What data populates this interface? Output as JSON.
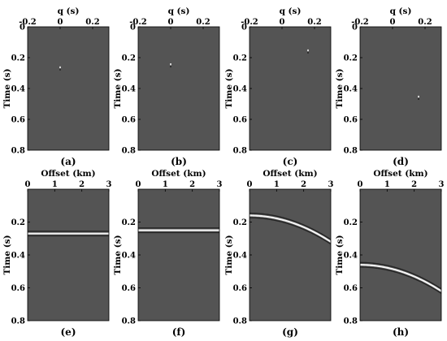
{
  "chart_data": [
    {
      "type": "heatmap",
      "caption": "(a)",
      "xlabel": "q (s)",
      "ylabel": "Time (s)",
      "x_ticks": [
        "-0.2",
        "0",
        "0.2"
      ],
      "y_ticks": [
        "0",
        "0.2",
        "0.4",
        "0.6",
        "0.8"
      ],
      "xlim": [
        -0.2,
        0.3
      ],
      "ylim": [
        0,
        0.8
      ],
      "events": [
        {
          "q": 0.0,
          "t": 0.27
        }
      ]
    },
    {
      "type": "heatmap",
      "caption": "(b)",
      "xlabel": "q (s)",
      "ylabel": "Time (s)",
      "x_ticks": [
        "-0.2",
        "0",
        "0.2"
      ],
      "y_ticks": [
        "0",
        "0.2",
        "0.4",
        "0.6",
        "0.8"
      ],
      "xlim": [
        -0.2,
        0.3
      ],
      "ylim": [
        0,
        0.8
      ],
      "events": [
        {
          "q": 0.0,
          "t": 0.25
        }
      ]
    },
    {
      "type": "heatmap",
      "caption": "(c)",
      "xlabel": "q (s)",
      "ylabel": "Time (s)",
      "x_ticks": [
        "-0.2",
        "0",
        "0.2"
      ],
      "y_ticks": [
        "0",
        "0.2",
        "0.4",
        "0.6",
        "0.8"
      ],
      "xlim": [
        -0.2,
        0.3
      ],
      "ylim": [
        0,
        0.8
      ],
      "events": [
        {
          "q": 0.16,
          "t": 0.16
        }
      ]
    },
    {
      "type": "heatmap",
      "caption": "(d)",
      "xlabel": "q (s)",
      "ylabel": "Time (s)",
      "x_ticks": [
        "-0.2",
        "0",
        "0.2"
      ],
      "y_ticks": [
        "0",
        "0.2",
        "0.4",
        "0.6",
        "0.8"
      ],
      "xlim": [
        -0.2,
        0.3
      ],
      "ylim": [
        0,
        0.8
      ],
      "events": [
        {
          "q": 0.16,
          "t": 0.46
        }
      ]
    },
    {
      "type": "heatmap",
      "caption": "(e)",
      "xlabel": "Offset (km)",
      "ylabel": "Time (s)",
      "x_ticks": [
        "0",
        "1",
        "2",
        "3"
      ],
      "y_ticks": [
        "0.2",
        "0.4",
        "0.6",
        "0.8"
      ],
      "xlim": [
        0,
        3
      ],
      "ylim": [
        0,
        0.8
      ],
      "event": {
        "t0": 0.27,
        "q": 0.0
      }
    },
    {
      "type": "heatmap",
      "caption": "(f)",
      "xlabel": "Offset (km)",
      "ylabel": "Time (s)",
      "x_ticks": [
        "0",
        "1",
        "2",
        "3"
      ],
      "y_ticks": [
        "0.2",
        "0.4",
        "0.6",
        "0.8"
      ],
      "xlim": [
        0,
        3
      ],
      "ylim": [
        0,
        0.8
      ],
      "event": {
        "t0": 0.25,
        "q": 0.0
      }
    },
    {
      "type": "heatmap",
      "caption": "(g)",
      "xlabel": "Offset (km)",
      "ylabel": "Time (s)",
      "x_ticks": [
        "0",
        "1",
        "2",
        "3"
      ],
      "y_ticks": [
        "0.2",
        "0.4",
        "0.6",
        "0.8"
      ],
      "xlim": [
        0,
        3
      ],
      "ylim": [
        0,
        0.8
      ],
      "event": {
        "t0": 0.16,
        "q": 0.16
      }
    },
    {
      "type": "heatmap",
      "caption": "(h)",
      "xlabel": "Offset (km)",
      "ylabel": "Time (s)",
      "x_ticks": [
        "0",
        "1",
        "2",
        "3"
      ],
      "y_ticks": [
        "0.2",
        "0.4",
        "0.6",
        "0.8"
      ],
      "xlim": [
        0,
        3
      ],
      "ylim": [
        0,
        0.8
      ],
      "event": {
        "t0": 0.46,
        "q": 0.16
      }
    }
  ],
  "colors": {
    "background_gray": "#545454",
    "event_bright": "#f4f4f4",
    "event_dark": "#242424"
  }
}
